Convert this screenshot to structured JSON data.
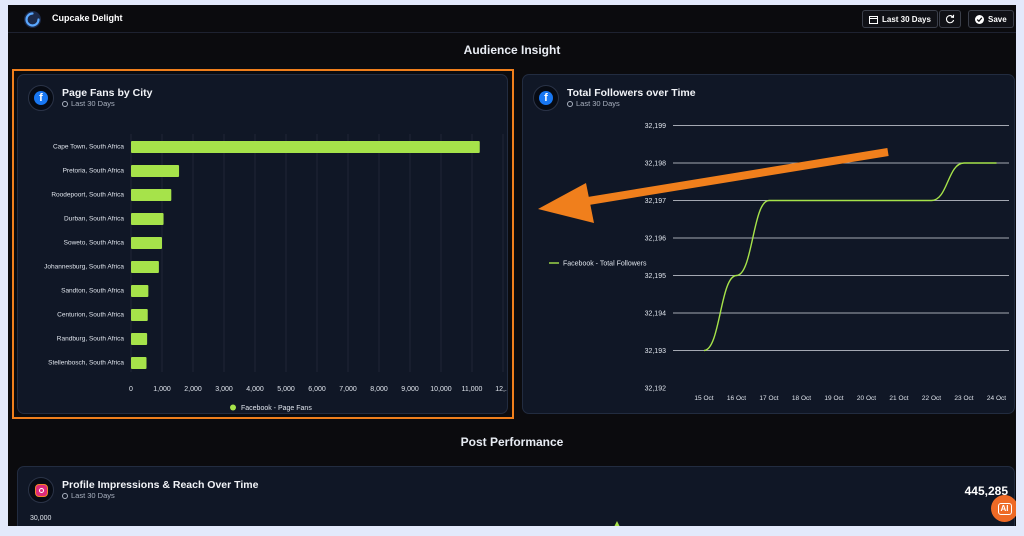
{
  "header": {
    "app_title": "Cupcake Delight",
    "date_button": "Last 30 Days",
    "save_button": "Save"
  },
  "sections": {
    "audience": "Audience Insight",
    "post": "Post Performance"
  },
  "cards": {
    "fans": {
      "title": "Page Fans by City",
      "subtitle": "Last 30 Days"
    },
    "followers": {
      "title": "Total Followers over Time",
      "subtitle": "Last 30 Days"
    },
    "impressions": {
      "title": "Profile Impressions & Reach Over Time",
      "subtitle": "Last 30 Days",
      "total": "445,285",
      "y_top_label": "30,000"
    }
  },
  "ai_button": "AI",
  "colors": {
    "accent_green": "#a6e34a",
    "highlight_orange": "#f07f1c",
    "facebook_blue": "#1877f2"
  },
  "chart_data": [
    {
      "type": "bar",
      "orientation": "horizontal",
      "categories": [
        "Cape Town, South Africa",
        "Pretoria, South Africa",
        "Roodepoort, South Africa",
        "Durban, South Africa",
        "Soweto, South Africa",
        "Johannesburg, South Africa",
        "Sandton, South Africa",
        "Centurion, South Africa",
        "Randburg, South Africa",
        "Stellenbosch, South Africa"
      ],
      "series": [
        {
          "name": "Facebook - Page Fans",
          "values": [
            11250,
            1550,
            1300,
            1050,
            1000,
            900,
            560,
            540,
            520,
            500
          ]
        }
      ],
      "xlim": [
        0,
        12200
      ],
      "x_ticks": [
        "0",
        "1,000",
        "2,000",
        "3,000",
        "4,000",
        "5,000",
        "6,000",
        "7,000",
        "8,000",
        "9,000",
        "10,000",
        "11,000",
        "12,..."
      ],
      "legend_position": "bottom",
      "grid": "vertical"
    },
    {
      "type": "line",
      "categories": [
        "15 Oct",
        "16 Oct",
        "17 Oct",
        "18 Oct",
        "19 Oct",
        "20 Oct",
        "21 Oct",
        "22 Oct",
        "23 Oct",
        "24 Oct"
      ],
      "series": [
        {
          "name": "Facebook - Total Followers",
          "values": [
            32193,
            32195,
            32197,
            32197,
            32197,
            32197,
            32197,
            32197,
            32198,
            32198
          ]
        }
      ],
      "ylim": [
        32192,
        32199
      ],
      "y_ticks": [
        "32,192",
        "32,193",
        "32,194",
        "32,195",
        "32,196",
        "32,197",
        "32,198",
        "32,199"
      ],
      "legend_position": "left",
      "grid": "horizontal"
    }
  ]
}
